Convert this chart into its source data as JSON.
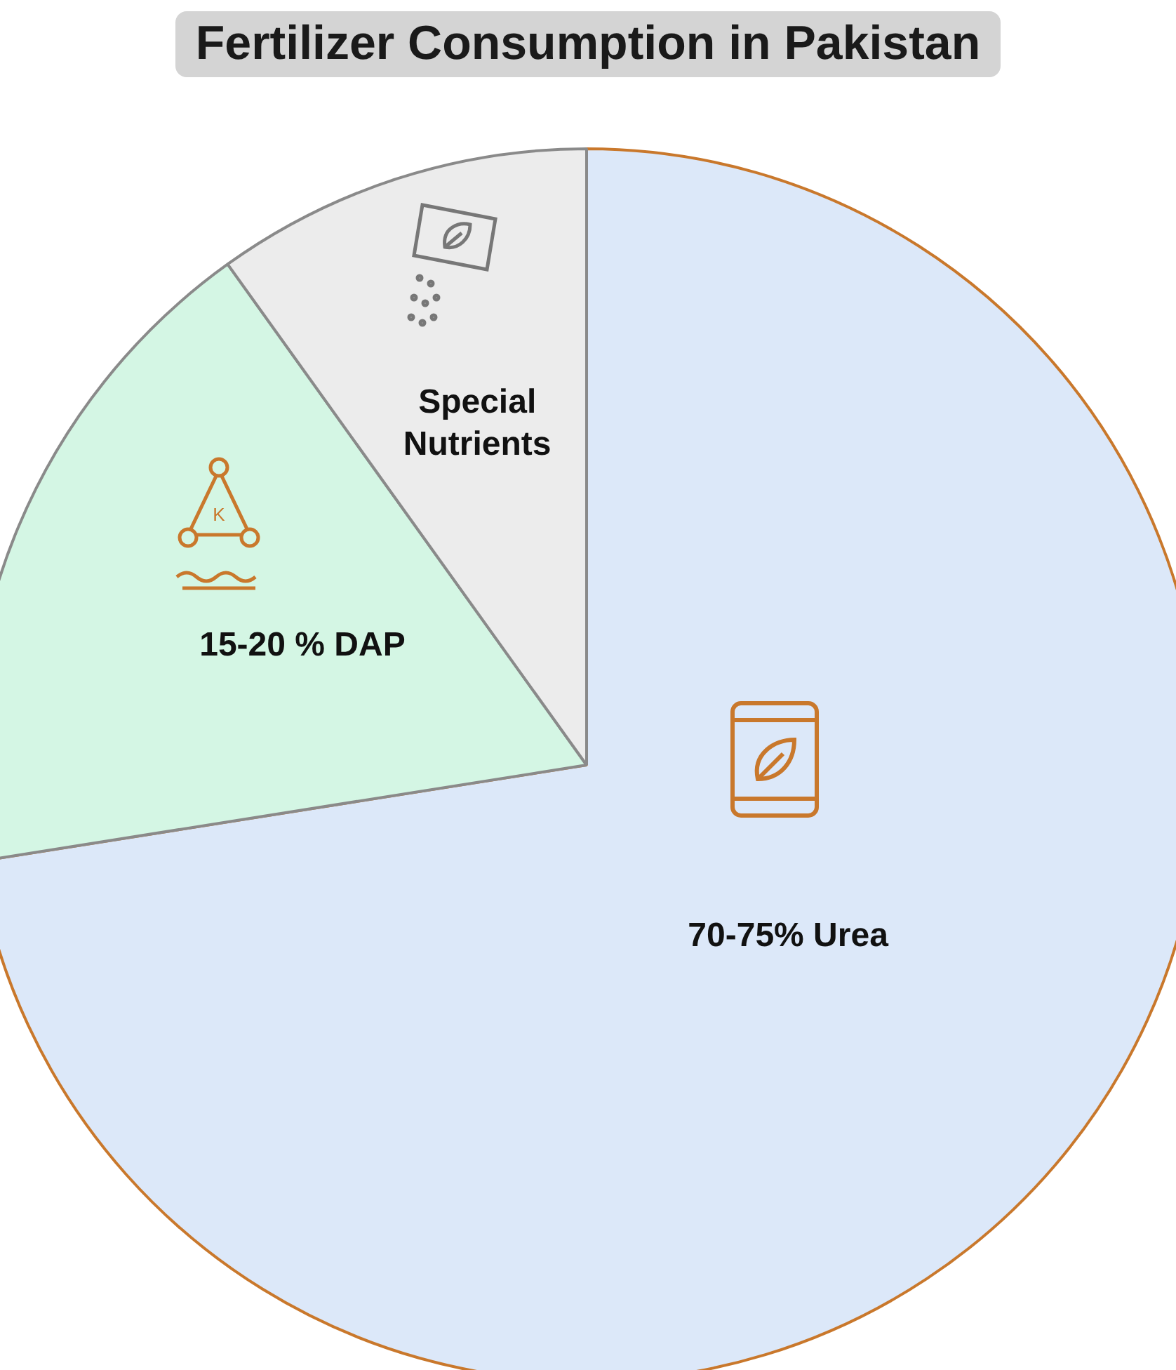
{
  "chart_data": {
    "type": "pie",
    "title": "Fertilizer Consumption in Pakistan",
    "categories": [
      "70-75% Urea",
      "15-20 % DAP",
      "Special Nutrients"
    ],
    "values": [
      72.5,
      17.6,
      9.9
    ],
    "colors": [
      "#dce8f9",
      "#d4f6e4",
      "#ececec"
    ],
    "legend": false,
    "annotations": [
      "K"
    ]
  }
}
